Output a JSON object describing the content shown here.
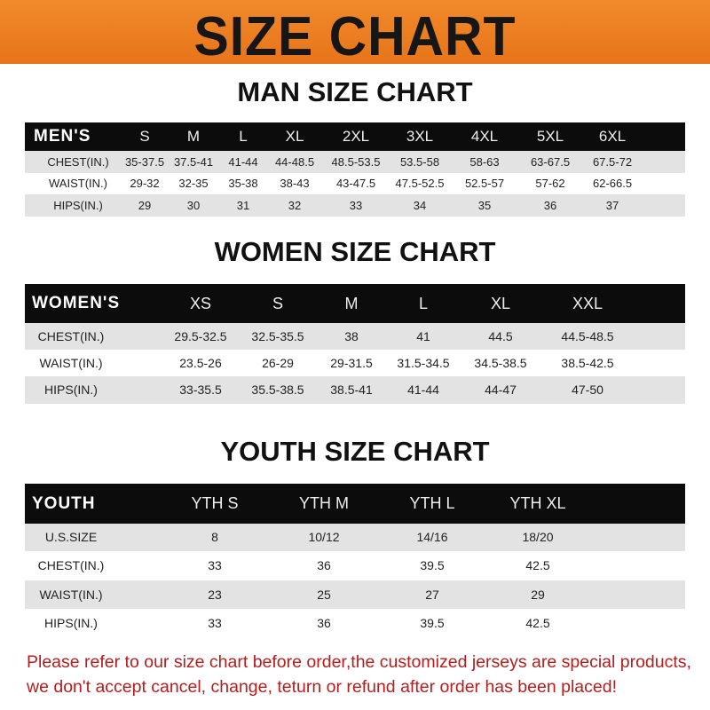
{
  "banner_title": "SIZE CHART",
  "colors": {
    "banner": "#ee8124",
    "header": "#0c0c0c",
    "stripe": "#e3e3e3",
    "note": "#b31e1e"
  },
  "men": {
    "title": "MAN SIZE CHART",
    "header": [
      "MEN'S",
      "S",
      "M",
      "L",
      "XL",
      "2XL",
      "3XL",
      "4XL",
      "5XL",
      "6XL"
    ],
    "rows": [
      [
        "CHEST(IN.)",
        "35-37.5",
        "37.5-41",
        "41-44",
        "44-48.5",
        "48.5-53.5",
        "53.5-58",
        "58-63",
        "63-67.5",
        "67.5-72"
      ],
      [
        "WAIST(IN.)",
        "29-32",
        "32-35",
        "35-38",
        "38-43",
        "43-47.5",
        "47.5-52.5",
        "52.5-57",
        "57-62",
        "62-66.5"
      ],
      [
        "HIPS(IN.)",
        "29",
        "30",
        "31",
        "32",
        "33",
        "34",
        "35",
        "36",
        "37"
      ]
    ]
  },
  "women": {
    "title": "WOMEN SIZE CHART",
    "header": [
      "WOMEN'S",
      "XS",
      "S",
      "M",
      "L",
      "XL",
      "XXL"
    ],
    "rows": [
      [
        "CHEST(IN.)",
        "29.5-32.5",
        "32.5-35.5",
        "38",
        "41",
        "44.5",
        "44.5-48.5"
      ],
      [
        "WAIST(IN.)",
        "23.5-26",
        "26-29",
        "29-31.5",
        "31.5-34.5",
        "34.5-38.5",
        "38.5-42.5"
      ],
      [
        "HIPS(IN.)",
        "33-35.5",
        "35.5-38.5",
        "38.5-41",
        "41-44",
        "44-47",
        "47-50"
      ]
    ]
  },
  "youth": {
    "title": "YOUTH SIZE CHART",
    "header": [
      "YOUTH",
      "YTH S",
      "YTH M",
      "YTH L",
      "YTH XL"
    ],
    "rows": [
      [
        "U.S.SIZE",
        "8",
        "10/12",
        "14/16",
        "18/20"
      ],
      [
        "CHEST(IN.)",
        "33",
        "36",
        "39.5",
        "42.5"
      ],
      [
        "WAIST(IN.)",
        "23",
        "25",
        "27",
        "29"
      ],
      [
        "HIPS(IN.)",
        "33",
        "36",
        "39.5",
        "42.5"
      ]
    ]
  },
  "note": {
    "line1": "Please refer to our size chart before order,the customized jerseys are special products,",
    "line2": "we don't accept cancel, change, teturn or refund after order has been placed!"
  }
}
